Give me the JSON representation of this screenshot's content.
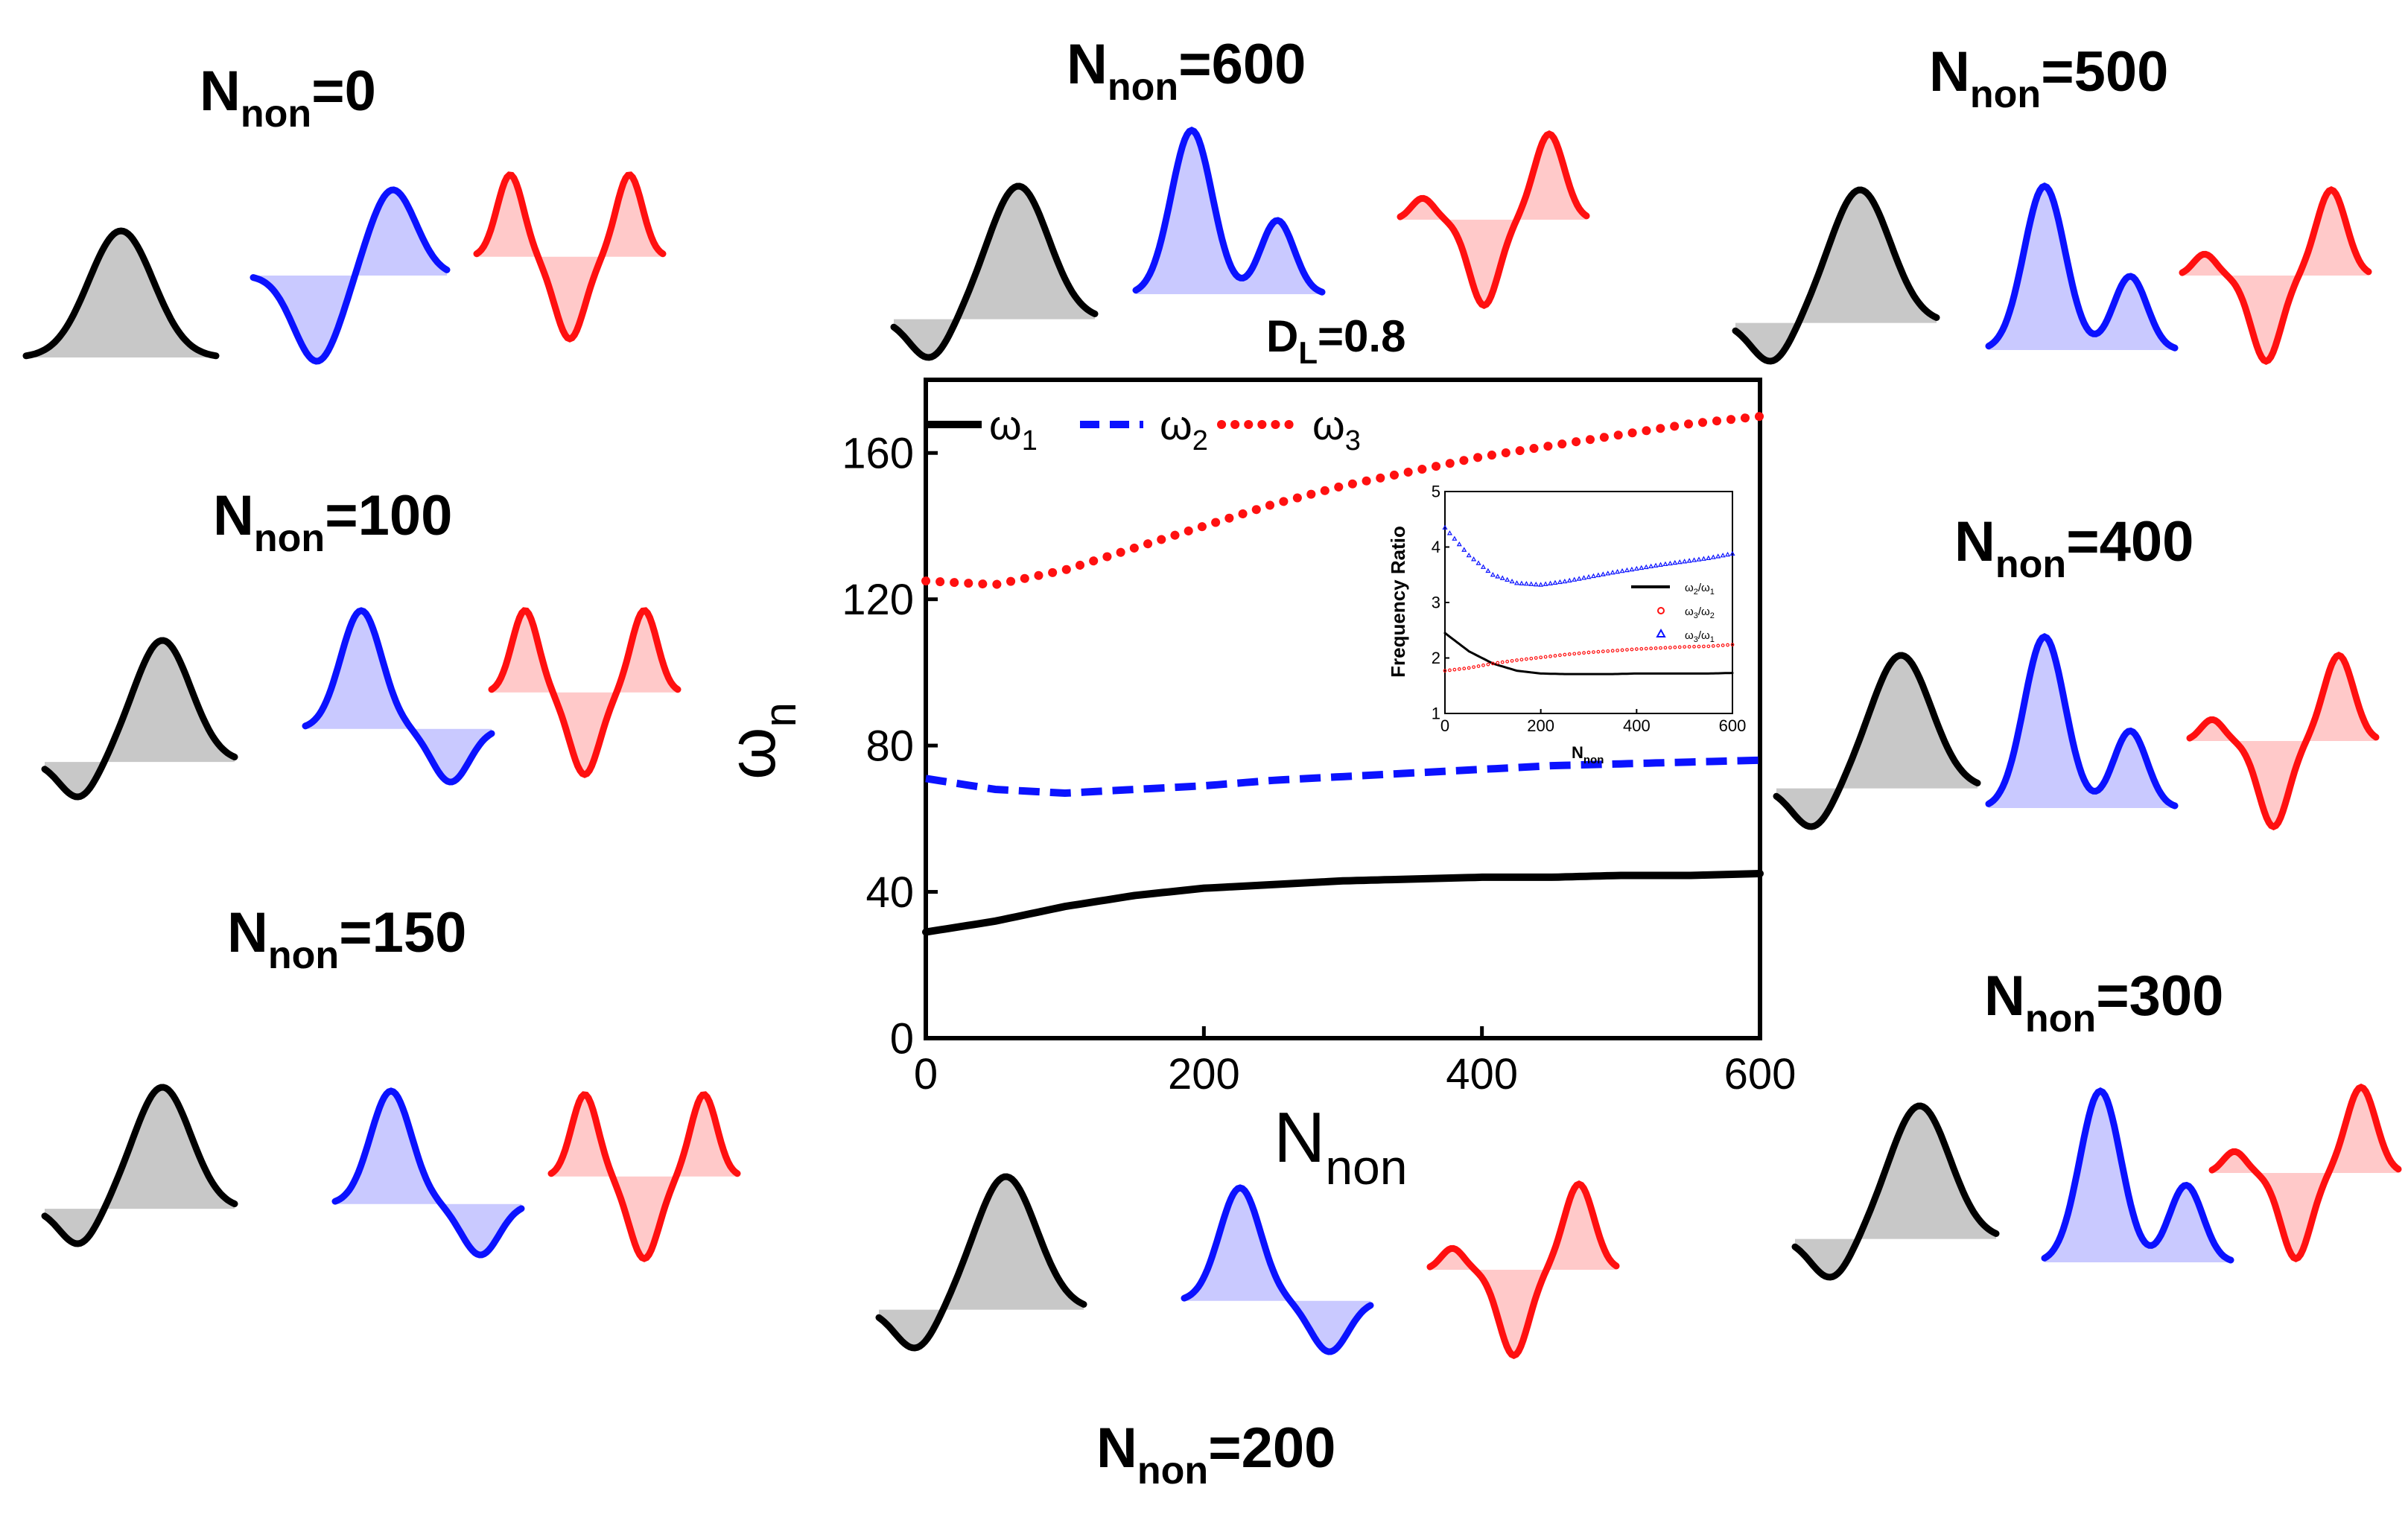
{
  "panel_title": "D",
  "panel_title_sub": "L",
  "panel_title_value": "=0.8",
  "mode_shape_labels": [
    {
      "base": "N",
      "sub": "non",
      "value": "=0"
    },
    {
      "base": "N",
      "sub": "non",
      "value": "=100"
    },
    {
      "base": "N",
      "sub": "non",
      "value": "=150"
    },
    {
      "base": "N",
      "sub": "non",
      "value": "=600"
    },
    {
      "base": "N",
      "sub": "non",
      "value": "=200"
    },
    {
      "base": "N",
      "sub": "non",
      "value": "=500"
    },
    {
      "base": "N",
      "sub": "non",
      "value": "=400"
    },
    {
      "base": "N",
      "sub": "non",
      "value": "=300"
    }
  ],
  "colors": {
    "mode1": "#000000",
    "mode2": "#0b12ff",
    "mode3": "#ff1010",
    "fill1": "#c8c8c8",
    "fill2": "#c9c9ff",
    "fill3": "#ffc9c9"
  },
  "chart_data": [
    {
      "type": "line",
      "title": "",
      "xlabel": "N",
      "xlabel_sub": "non",
      "ylabel": "ω",
      "ylabel_sub": "n",
      "xlim": [
        0,
        600
      ],
      "ylim": [
        0,
        180
      ],
      "xticks": [
        0,
        200,
        400,
        600
      ],
      "yticks": [
        0,
        40,
        80,
        120,
        160
      ],
      "grid": false,
      "legend_position": "top-left",
      "x": [
        0,
        50,
        100,
        150,
        200,
        250,
        300,
        350,
        400,
        450,
        500,
        550,
        600
      ],
      "series": [
        {
          "name": "ω",
          "name_sub": "1",
          "style": "solid",
          "color": "#000000",
          "values": [
            29,
            32,
            36,
            39,
            41,
            42,
            43,
            43.5,
            44,
            44,
            44.5,
            44.5,
            45
          ]
        },
        {
          "name": "ω",
          "name_sub": "2",
          "style": "dashed",
          "color": "#0b12ff",
          "values": [
            71,
            68,
            67,
            68,
            69,
            70.5,
            71.5,
            72.5,
            73.5,
            74.5,
            75,
            75.5,
            76
          ]
        },
        {
          "name": "ω",
          "name_sub": "3",
          "style": "dotted",
          "color": "#ff1010",
          "values": [
            125,
            124,
            128,
            134,
            140,
            146,
            151,
            155,
            159,
            162,
            165,
            168,
            170
          ]
        }
      ]
    },
    {
      "type": "line",
      "title": "",
      "xlabel": "N",
      "xlabel_sub": "non",
      "ylabel": "Frequency Ratio",
      "xlim": [
        0,
        600
      ],
      "ylim": [
        1,
        5
      ],
      "xticks": [
        0,
        200,
        400,
        600
      ],
      "yticks": [
        1,
        2,
        3,
        4,
        5
      ],
      "legend_position": "right",
      "x": [
        0,
        50,
        100,
        150,
        200,
        250,
        300,
        350,
        400,
        450,
        500,
        550,
        600
      ],
      "series": [
        {
          "name": "ω",
          "name_sub": "2",
          "name_den": "1",
          "style": "solid",
          "color": "#000000",
          "values": [
            2.45,
            2.12,
            1.9,
            1.77,
            1.72,
            1.71,
            1.71,
            1.71,
            1.72,
            1.72,
            1.72,
            1.72,
            1.73
          ]
        },
        {
          "name": "ω",
          "name_sub": "3",
          "name_den": "2",
          "style": "circle",
          "color": "#ff1010",
          "values": [
            1.77,
            1.82,
            1.9,
            1.96,
            2.01,
            2.06,
            2.1,
            2.13,
            2.16,
            2.18,
            2.2,
            2.21,
            2.24
          ]
        },
        {
          "name": "ω",
          "name_sub": "3",
          "name_den": "1",
          "style": "triangle",
          "color": "#0b12ff",
          "values": [
            4.35,
            3.85,
            3.5,
            3.35,
            3.32,
            3.38,
            3.46,
            3.54,
            3.61,
            3.68,
            3.74,
            3.8,
            3.88
          ]
        }
      ]
    }
  ]
}
